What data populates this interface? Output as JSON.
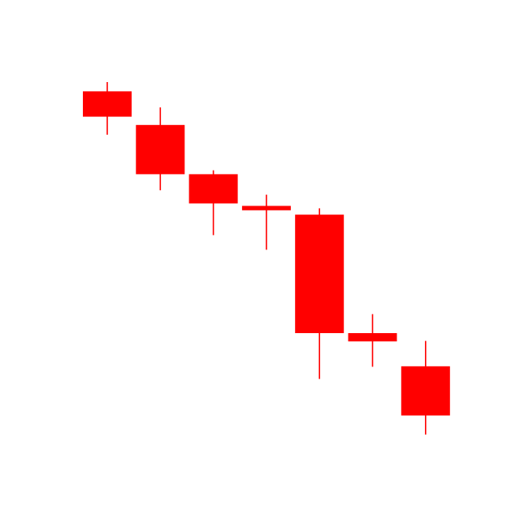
{
  "chart_data": {
    "type": "candlestick",
    "title": "",
    "xlabel": "",
    "ylabel": "",
    "axes_visible": false,
    "grid": false,
    "legend": "none",
    "ylim": [
      0,
      100
    ],
    "colors": {
      "down": "#ff0000",
      "background": "#ffffff"
    },
    "candles": [
      {
        "open": 84.6,
        "high": 86.5,
        "low": 75.7,
        "close": 79.4
      },
      {
        "open": 77.7,
        "high": 81.3,
        "low": 64.3,
        "close": 67.6
      },
      {
        "open": 67.6,
        "high": 68.4,
        "low": 55.1,
        "close": 61.6
      },
      {
        "open": 61.1,
        "high": 63.4,
        "low": 52.1,
        "close": 60.2
      },
      {
        "open": 59.3,
        "high": 60.6,
        "low": 25.6,
        "close": 35.0
      },
      {
        "open": 35.0,
        "high": 38.9,
        "low": 28.1,
        "close": 33.3
      },
      {
        "open": 28.2,
        "high": 33.4,
        "low": 14.2,
        "close": 18.1
      }
    ]
  }
}
